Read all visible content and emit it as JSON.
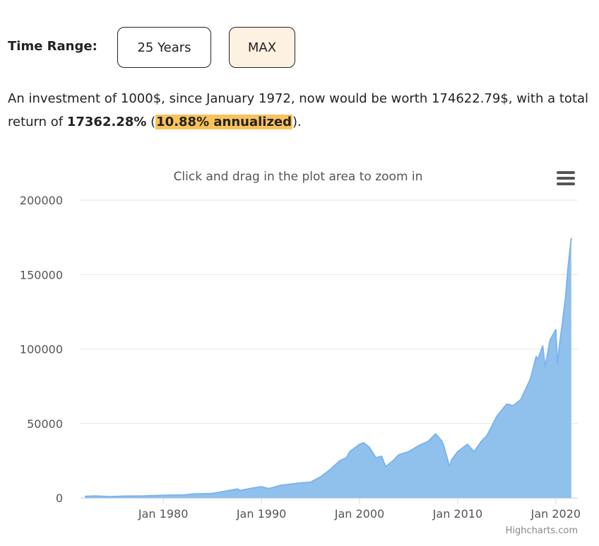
{
  "controls": {
    "time_range_label": "Time Range:",
    "buttons": [
      {
        "label": "25 Years",
        "selected": false
      },
      {
        "label": "MAX",
        "selected": true
      }
    ]
  },
  "summary": {
    "text_1": "An investment of 1000$, since January 1972, now would be worth 174622.79$, with a total return of ",
    "total_return": "17362.28%",
    "text_2": " (",
    "annualized": "10.88% annualized",
    "text_3": ")."
  },
  "chart_data": {
    "type": "area",
    "subtitle": "Click and drag in the plot area to zoom in",
    "credits": "Highcharts.com",
    "xlabel": "",
    "ylabel": "",
    "grid": true,
    "legend": "none",
    "xlim": [
      "1972-01",
      "2021-09"
    ],
    "ylim": [
      0,
      200000
    ],
    "y_ticks": [
      "0",
      "50000",
      "100000",
      "150000",
      "200000"
    ],
    "x_ticks": [
      "Jan 1980",
      "Jan 1990",
      "Jan 2000",
      "Jan 2010",
      "Jan 2020"
    ],
    "series": [
      {
        "color": "#7cb5ec",
        "fill": "#90c0ec",
        "x": [
          "1972-01",
          "1973-01",
          "1974-09",
          "1976-01",
          "1978-01",
          "1980-01",
          "1982-01",
          "1983-01",
          "1985-01",
          "1987-08",
          "1987-11",
          "1989-01",
          "1990-01",
          "1990-10",
          "1992-01",
          "1994-01",
          "1995-01",
          "1996-01",
          "1997-01",
          "1998-01",
          "1998-09",
          "1999-01",
          "2000-01",
          "2000-06",
          "2001-01",
          "2001-09",
          "2002-04",
          "2002-09",
          "2003-06",
          "2004-01",
          "2005-01",
          "2006-01",
          "2007-01",
          "2007-10",
          "2008-06",
          "2008-09",
          "2009-03",
          "2009-06",
          "2010-01",
          "2011-01",
          "2011-09",
          "2012-06",
          "2013-01",
          "2014-01",
          "2015-01",
          "2015-09",
          "2016-06",
          "2017-01",
          "2017-06",
          "2018-01",
          "2018-03",
          "2018-09",
          "2018-12",
          "2019-06",
          "2020-01",
          "2020-03",
          "2020-06",
          "2020-09",
          "2021-01",
          "2021-04",
          "2021-08"
        ],
        "values": [
          1000,
          1300,
          800,
          1200,
          1300,
          1800,
          1900,
          2600,
          3000,
          6000,
          5000,
          6500,
          7500,
          6200,
          8500,
          10000,
          10500,
          14000,
          19000,
          25000,
          27000,
          31000,
          36000,
          37000,
          34000,
          27000,
          28000,
          21000,
          25000,
          29000,
          31000,
          35000,
          38000,
          43000,
          38000,
          33000,
          21000,
          26000,
          31000,
          36000,
          31000,
          38000,
          42000,
          55000,
          63000,
          62000,
          66000,
          74000,
          80000,
          95000,
          93000,
          102000,
          88000,
          106000,
          113000,
          90000,
          105000,
          117000,
          135000,
          155000,
          174622
        ]
      }
    ]
  }
}
